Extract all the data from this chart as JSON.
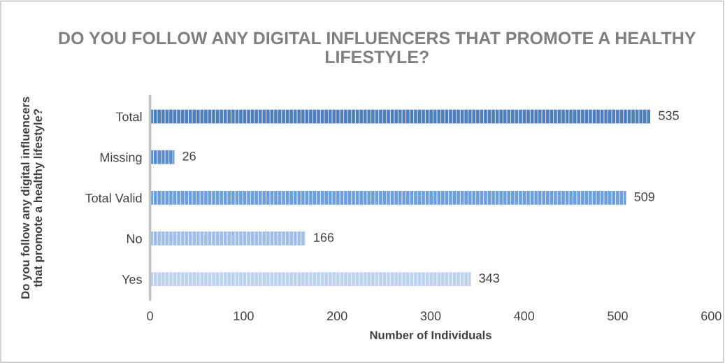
{
  "chart_data": {
    "type": "bar",
    "orientation": "horizontal",
    "title": "DO YOU FOLLOW ANY DIGITAL INFLUENCERS THAT PROMOTE A HEALTHY LIFESTYLE?",
    "xlabel": "Number of Individuals",
    "ylabel": "Do you follow any digital influencers\nthat promote a healthy lifestyle?",
    "categories": [
      "Total",
      "Missing",
      "Total Valid",
      "No",
      "Yes"
    ],
    "values": [
      535,
      26,
      509,
      166,
      343
    ],
    "colors": [
      "#4f7fba",
      "#5a8ccb",
      "#6c9fdb",
      "#9fbfe8",
      "#bed2ef"
    ],
    "xlim": [
      0,
      600
    ],
    "xticks": [
      0,
      100,
      200,
      300,
      400,
      500,
      600
    ],
    "data_labels": true,
    "grid": false,
    "legend": false
  }
}
